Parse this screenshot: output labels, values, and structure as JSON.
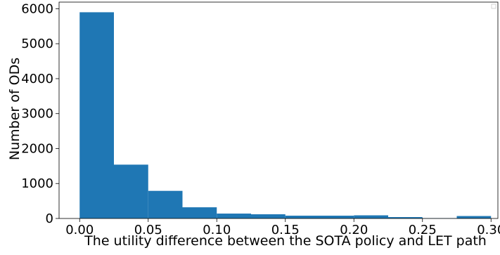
{
  "chart_data": {
    "type": "bar",
    "title": "",
    "xlabel": "The utility difference between the SOTA policy and LET path",
    "ylabel": "Number of ODs",
    "x_bin_edges": [
      0.0,
      0.025,
      0.05,
      0.075,
      0.1,
      0.125,
      0.15,
      0.175,
      0.2,
      0.225,
      0.25,
      0.275,
      0.3
    ],
    "values": [
      5900,
      1540,
      790,
      320,
      140,
      120,
      80,
      80,
      90,
      40,
      10,
      70
    ],
    "xlim": [
      -0.015,
      0.305
    ],
    "ylim": [
      0,
      6190
    ],
    "xticks": [
      0.0,
      0.05,
      0.1,
      0.15,
      0.2,
      0.25,
      0.3
    ],
    "xtick_labels": [
      "0.00",
      "0.05",
      "0.10",
      "0.15",
      "0.20",
      "0.25",
      "0.30"
    ],
    "yticks": [
      0,
      1000,
      2000,
      3000,
      4000,
      5000,
      6000
    ],
    "ytick_labels": [
      "0",
      "1000",
      "2000",
      "3000",
      "4000",
      "5000",
      "6000"
    ],
    "bar_color": "#1f77b4",
    "grid": false,
    "legend_position": "top-right"
  }
}
